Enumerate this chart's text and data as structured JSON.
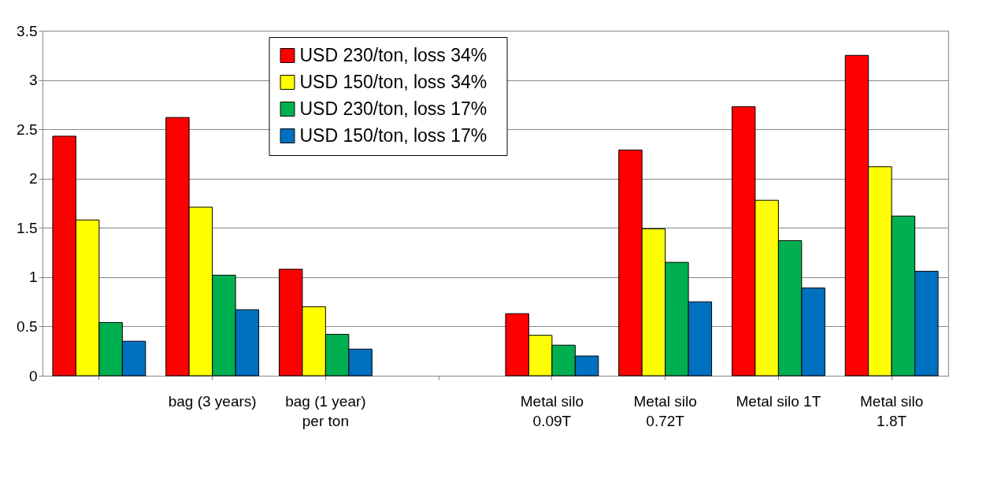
{
  "chart_data": {
    "type": "bar",
    "categories": [
      null,
      "bag (3 years)",
      "bag (1 year)\nper ton",
      null,
      "Metal silo\n0.09T",
      "Metal silo\n0.72T",
      "Metal silo 1T",
      "Metal silo\n1.8T"
    ],
    "series": [
      {
        "name": "USD  230/ton, loss 34%",
        "color": "#ff0000",
        "values": [
          2.43,
          2.62,
          1.08,
          null,
          0.63,
          2.29,
          2.73,
          3.25
        ]
      },
      {
        "name": "USD  150/ton, loss  34%",
        "color": "#ffff00",
        "values": [
          1.58,
          1.71,
          0.7,
          null,
          0.41,
          1.49,
          1.78,
          2.12
        ]
      },
      {
        "name": "USD  230/ton, loss  17%",
        "color": "#00b050",
        "values": [
          0.54,
          1.02,
          0.42,
          null,
          0.31,
          1.15,
          1.37,
          1.62
        ]
      },
      {
        "name": "USD  150/ton, loss  17%",
        "color": "#0070c0",
        "values": [
          0.35,
          0.67,
          0.27,
          null,
          0.2,
          0.75,
          0.89,
          1.06
        ]
      }
    ],
    "ylim": [
      0,
      3.5
    ],
    "yticks": [
      0,
      0.5,
      1,
      1.5,
      2,
      2.5,
      3,
      3.5
    ],
    "grid": "y",
    "legend": "top"
  }
}
